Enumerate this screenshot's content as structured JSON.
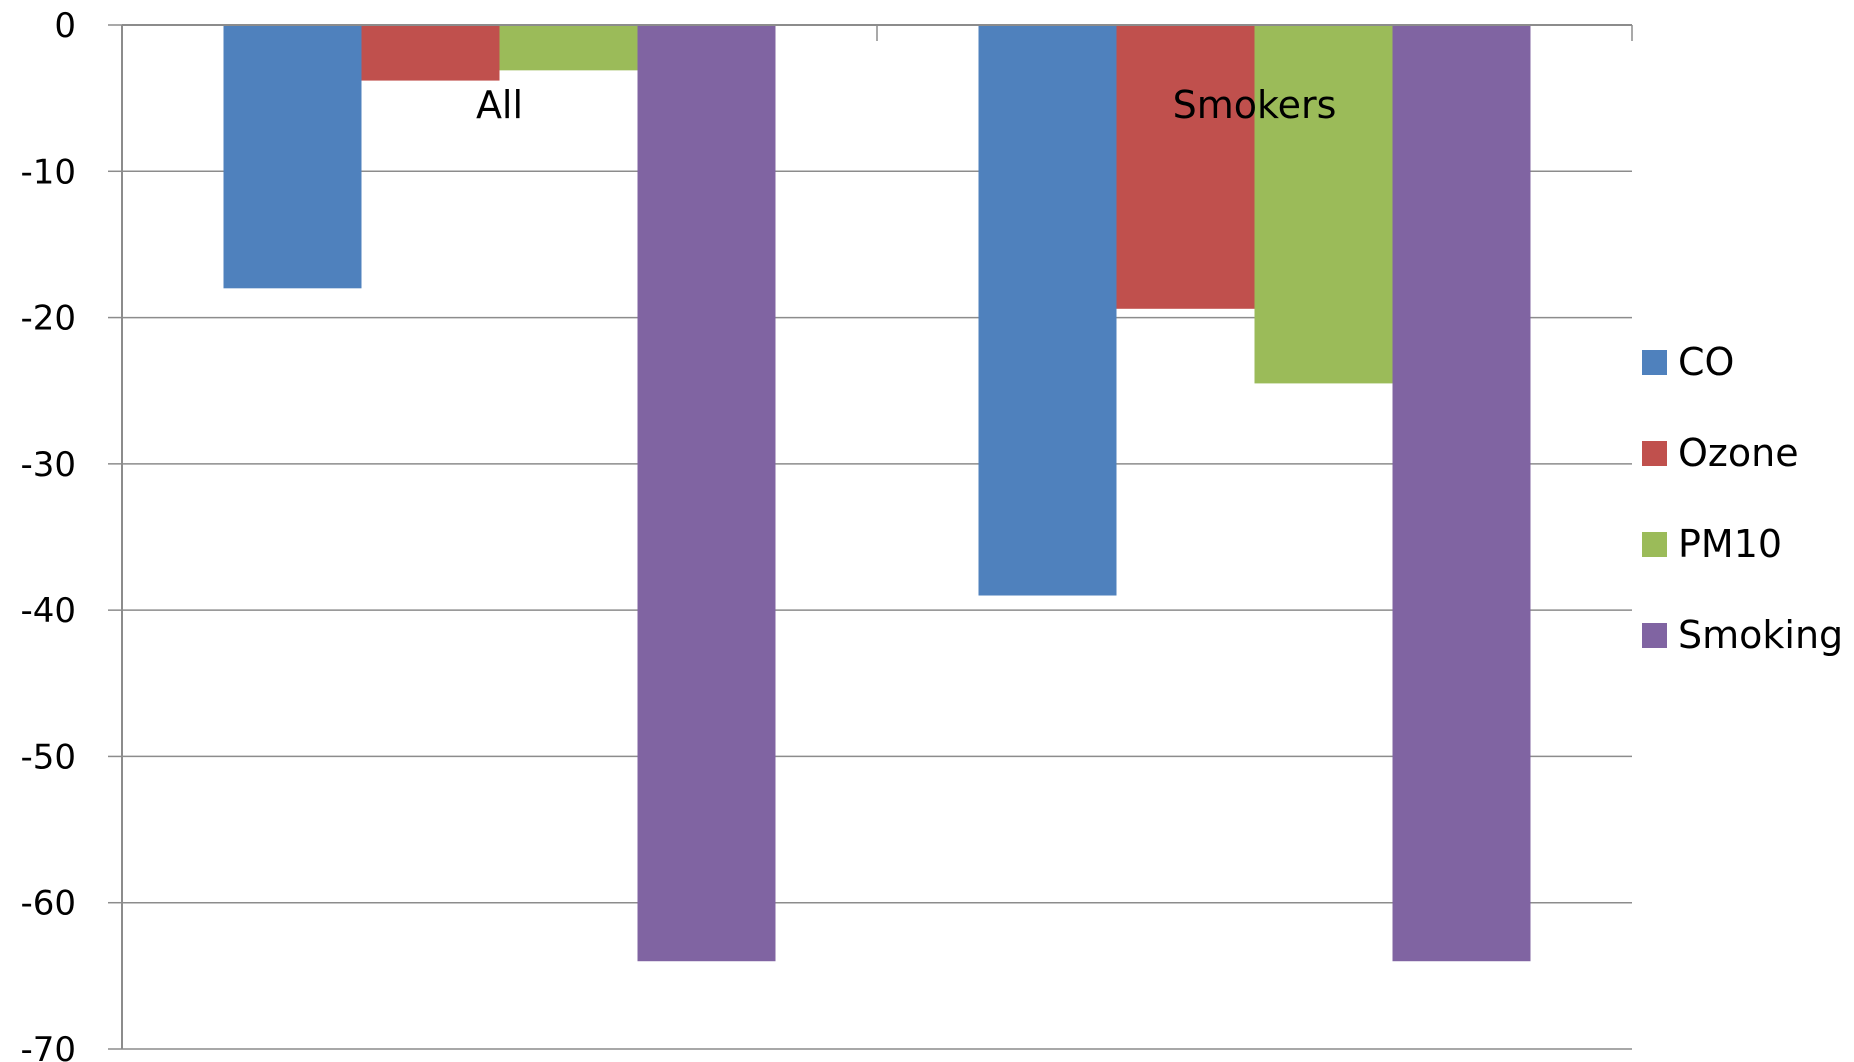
{
  "chart_data": {
    "type": "bar",
    "categories": [
      "All",
      "Smokers"
    ],
    "series": [
      {
        "name": "CO",
        "color": "#4F81BD",
        "values": [
          -18,
          -39
        ]
      },
      {
        "name": "Ozone",
        "color": "#C0504D",
        "values": [
          -3.8,
          -19.4
        ]
      },
      {
        "name": "PM10",
        "color": "#9BBB59",
        "values": [
          -3.1,
          -24.5
        ]
      },
      {
        "name": "Smoking",
        "color": "#8064A2",
        "values": [
          -64,
          -64
        ]
      }
    ],
    "yticks": [
      "0",
      "-10",
      "-20",
      "-30",
      "-40",
      "-50",
      "-60",
      "-70"
    ],
    "ylim": [
      -70,
      0
    ],
    "grid": true,
    "legend_position": "right"
  }
}
